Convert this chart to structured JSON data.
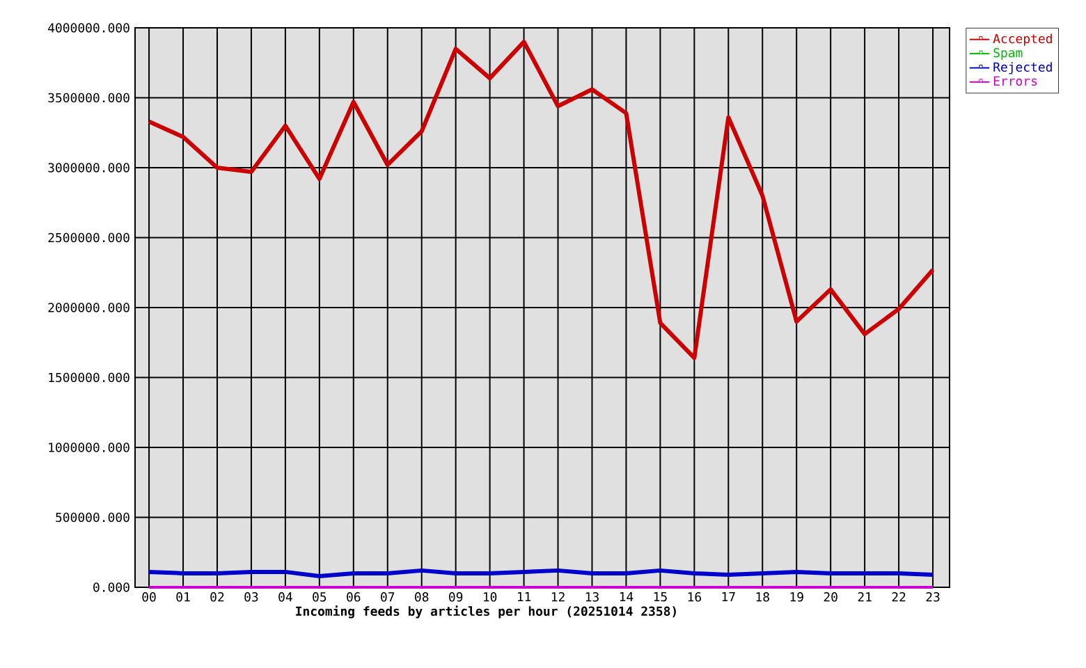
{
  "chart_data": {
    "type": "line",
    "xlabel": "Incoming feeds by articles per hour (20251014 2358)",
    "categories": [
      "00",
      "01",
      "02",
      "03",
      "04",
      "05",
      "06",
      "07",
      "08",
      "09",
      "10",
      "11",
      "12",
      "13",
      "14",
      "15",
      "16",
      "17",
      "18",
      "19",
      "20",
      "21",
      "22",
      "23"
    ],
    "series": [
      {
        "name": "Accepted",
        "color": "#cc0000",
        "values": [
          3330000,
          3220000,
          3000000,
          2970000,
          3300000,
          2920000,
          3470000,
          3020000,
          3260000,
          3850000,
          3640000,
          3900000,
          3440000,
          3560000,
          3390000,
          1890000,
          1640000,
          3360000,
          2800000,
          1900000,
          2130000,
          1810000,
          1990000,
          2270000
        ]
      },
      {
        "name": "Spam",
        "color": "#00bb00",
        "values": [
          null,
          null,
          null,
          null,
          null,
          null,
          null,
          null,
          null,
          null,
          null,
          null,
          null,
          null,
          null,
          null,
          null,
          null,
          null,
          null,
          null,
          null,
          null,
          null
        ]
      },
      {
        "name": "Rejected",
        "color": "#0000cc",
        "values": [
          110000,
          100000,
          100000,
          110000,
          110000,
          80000,
          100000,
          100000,
          120000,
          100000,
          100000,
          110000,
          120000,
          100000,
          100000,
          120000,
          100000,
          90000,
          100000,
          110000,
          100000,
          100000,
          100000,
          90000
        ]
      },
      {
        "name": "Errors",
        "color": "#cc00cc",
        "values": [
          0,
          0,
          0,
          0,
          0,
          0,
          0,
          0,
          0,
          0,
          0,
          0,
          0,
          0,
          0,
          0,
          0,
          0,
          0,
          0,
          0,
          0,
          0,
          0
        ]
      }
    ],
    "ylim": [
      0,
      4000000
    ],
    "yticks": [
      {
        "value": 0,
        "label": "0.000"
      },
      {
        "value": 500000,
        "label": "500000.000"
      },
      {
        "value": 1000000,
        "label": "1000000.000"
      },
      {
        "value": 1500000,
        "label": "1500000.000"
      },
      {
        "value": 2000000,
        "label": "2000000.000"
      },
      {
        "value": 2500000,
        "label": "2500000.000"
      },
      {
        "value": 3000000,
        "label": "3000000.000"
      },
      {
        "value": 3500000,
        "label": "3500000.000"
      },
      {
        "value": 4000000,
        "label": "4000000.000"
      }
    ],
    "grid": true,
    "legend": "right"
  }
}
